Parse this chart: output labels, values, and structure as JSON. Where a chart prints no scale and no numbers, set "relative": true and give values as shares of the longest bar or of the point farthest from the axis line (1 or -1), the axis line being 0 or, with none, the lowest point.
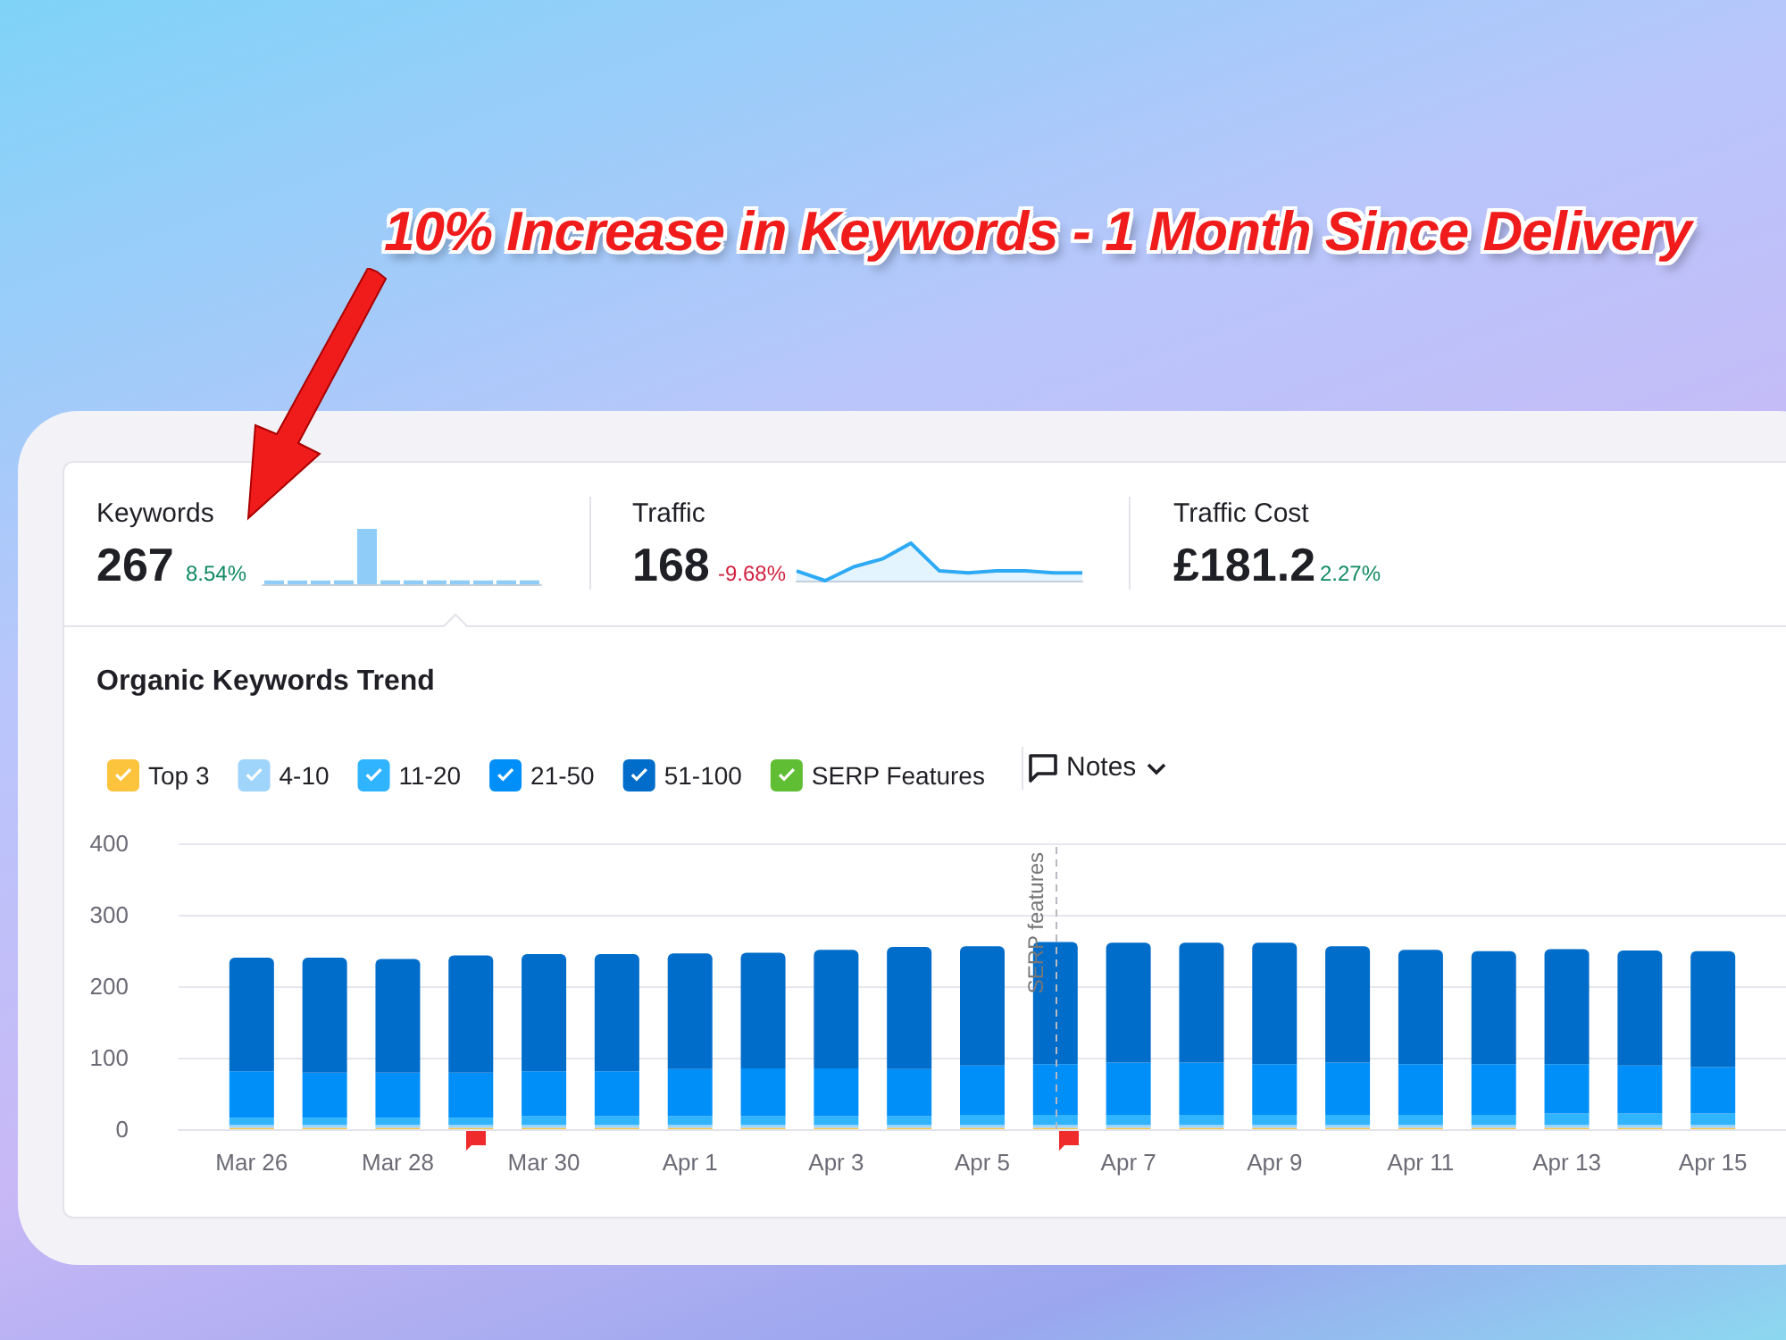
{
  "chart_data": [
    {
      "type": "bar",
      "relative": true,
      "color": "#8fcdf8",
      "categories": [
        null,
        null,
        null,
        null,
        null,
        null,
        null,
        null,
        null,
        null,
        null,
        null
      ],
      "values": [
        0.07,
        0.07,
        0.07,
        0.07,
        1,
        0.07,
        0.07,
        0.07,
        0.07,
        0.07,
        0.07,
        0.07
      ]
    },
    {
      "type": "area",
      "relative": true,
      "color": "#2eaaf5",
      "categories": [
        null,
        null,
        null,
        null,
        null,
        null,
        null,
        null,
        null,
        null,
        null
      ],
      "values": [
        0.26,
        0,
        0.37,
        0.58,
        1,
        0.26,
        0.21,
        0.26,
        0.26,
        0.21,
        0.21
      ]
    },
    {
      "type": "bar",
      "title": "Organic Keywords Trend",
      "stacked": true,
      "x": [
        "--03-26",
        "--03-27",
        "--03-28",
        "--03-29",
        "--03-30",
        "--03-31",
        "--04-01",
        "--04-02",
        "--04-03",
        "--04-04",
        "--04-05",
        "--04-06",
        "--04-07",
        "--04-08",
        "--04-09",
        "--04-10",
        "--04-11",
        "--04-12",
        "--04-13",
        "--04-14",
        "--04-15"
      ],
      "series": [
        {
          "name": "Top 3",
          "color": "#fcc43c",
          "values": [
            2,
            2,
            2,
            2,
            2,
            2,
            2,
            2,
            2,
            2,
            2,
            2,
            2,
            2,
            2,
            2,
            2,
            2,
            2,
            2,
            2
          ]
        },
        {
          "name": "4-10",
          "color": "#9fd4fb",
          "values": [
            4,
            4,
            4,
            4,
            4,
            4,
            4,
            4,
            4,
            4,
            4,
            4,
            4,
            4,
            4,
            4,
            4,
            4,
            4,
            4,
            4
          ]
        },
        {
          "name": "11-20",
          "color": "#30b4ff",
          "values": [
            10,
            10,
            10,
            10,
            12,
            12,
            12,
            12,
            12,
            12,
            14,
            14,
            14,
            14,
            14,
            14,
            14,
            14,
            16,
            16,
            16
          ]
        },
        {
          "name": "21-50",
          "color": "#008ff8",
          "values": [
            65,
            63,
            63,
            63,
            63,
            63,
            66,
            67,
            67,
            66,
            69,
            71,
            73,
            73,
            71,
            73,
            71,
            71,
            69,
            67,
            65
          ]
        },
        {
          "name": "51-100",
          "color": "#006dca",
          "values": [
            159,
            161,
            159,
            164,
            164,
            164,
            162,
            162,
            166,
            171,
            167,
            171,
            168,
            168,
            170,
            163,
            160,
            158,
            161,
            161,
            162
          ]
        },
        {
          "name": "SERP Features",
          "color": "#5fbe33",
          "values": [
            null,
            null,
            null,
            null,
            null,
            null,
            null,
            null,
            null,
            null,
            null,
            null,
            null,
            null,
            null,
            null,
            null,
            null,
            null,
            null,
            null
          ]
        }
      ],
      "xlim": [
        "--03-25",
        "--04-16"
      ],
      "xticks": [
        {
          "value": "--03-26",
          "label": "Mar 26"
        },
        {
          "value": "--03-28",
          "label": "Mar 28"
        },
        {
          "value": "--03-30",
          "label": "Mar 30"
        },
        {
          "value": "--04-01",
          "label": "Apr 1"
        },
        {
          "value": "--04-03",
          "label": "Apr 3"
        },
        {
          "value": "--04-05",
          "label": "Apr 5"
        },
        {
          "value": "--04-07",
          "label": "Apr 7"
        },
        {
          "value": "--04-09",
          "label": "Apr 9"
        },
        {
          "value": "--04-11",
          "label": "Apr 11"
        },
        {
          "value": "--04-13",
          "label": "Apr 13"
        },
        {
          "value": "--04-15",
          "label": "Apr 15"
        }
      ],
      "ylim": [
        0,
        400
      ],
      "yticks": [
        0,
        100,
        200,
        300,
        400
      ],
      "grid": "y",
      "legend": "top left",
      "ref_lines": [
        {
          "axis": "x",
          "value": "--04-06",
          "label": "SERP features",
          "color": "#b8b8c0",
          "line_style": "dashed"
        }
      ],
      "annotations": [
        "10% Increase in Keywords - 1 Month Since Delivery",
        "Keywords",
        "267",
        "8.54%",
        "Traffic",
        "168",
        "-9.68%",
        "Traffic Cost",
        "£181.2",
        "2.27%",
        "Notes"
      ]
    }
  ]
}
